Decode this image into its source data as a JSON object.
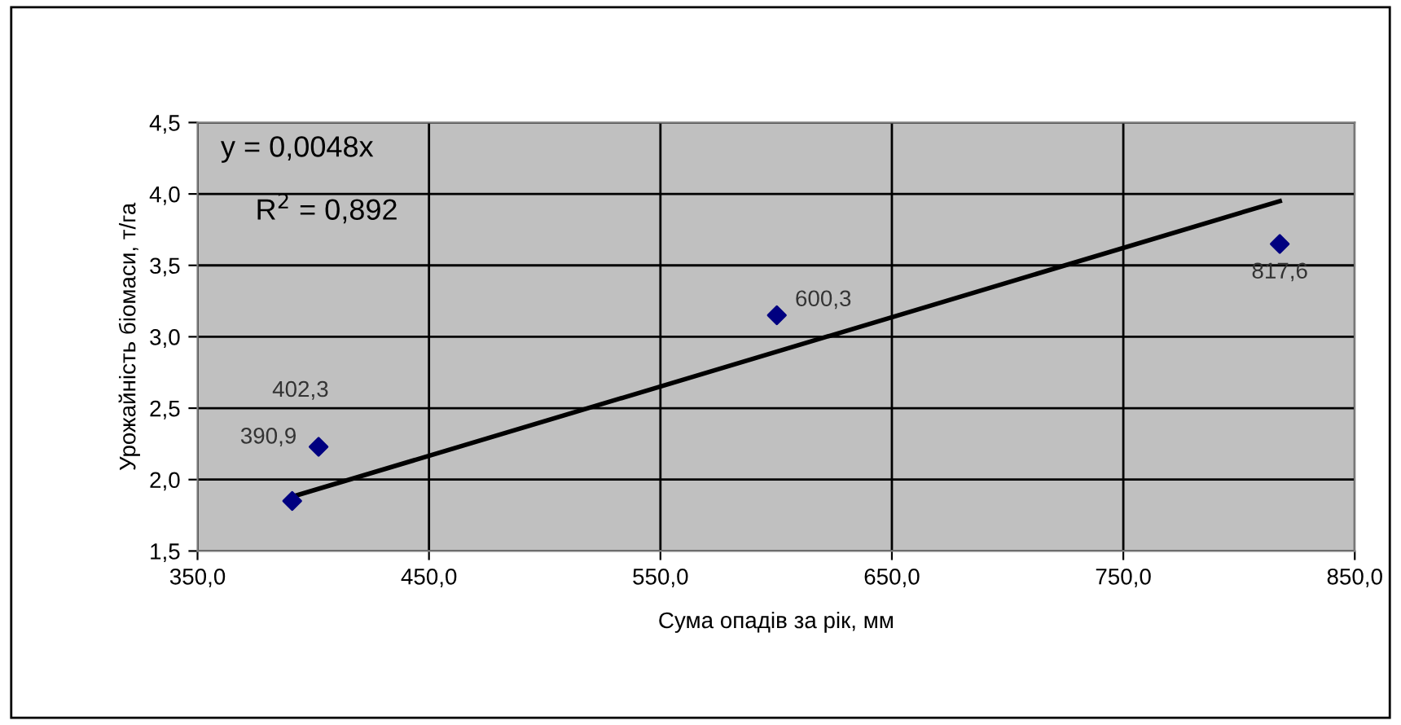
{
  "chart_data": {
    "type": "scatter",
    "xlabel": "Сума опадів за рік, мм",
    "ylabel": "Урожайність біомаси, т/га",
    "series": [
      {
        "color": "#000080",
        "x": [
          390.9,
          402.3,
          600.3,
          817.6
        ],
        "values": [
          1.85,
          2.23,
          3.15,
          3.65
        ],
        "marker": "diamond"
      },
      {
        "type": "line",
        "color": "#000000",
        "x": [
          390.9,
          817.6
        ],
        "values": [
          1.88,
          3.95
        ],
        "line_style": "solid"
      }
    ],
    "annotations": [
      "y = 0,0048x",
      "R$^{2}$ = 0,892",
      {
        "text": "390,9",
        "x": 390.9,
        "y": 1.85
      },
      {
        "text": "402,3",
        "x": 402.3,
        "y": 2.23
      },
      {
        "text": "600,3",
        "x": 600.3,
        "y": 3.15
      },
      {
        "text": "817,6",
        "x": 817.6,
        "y": 3.65
      }
    ],
    "xlim": [
      350,
      850
    ],
    "ylim": [
      1.5,
      4.5
    ],
    "xticks": [
      {
        "value": 350,
        "label": "350,0"
      },
      {
        "value": 450,
        "label": "450,0"
      },
      {
        "value": 550,
        "label": "550,0"
      },
      {
        "value": 650,
        "label": "650,0"
      },
      {
        "value": 750,
        "label": "750,0"
      },
      {
        "value": 850,
        "label": "850,0"
      }
    ],
    "yticks": [
      {
        "value": 1.5,
        "label": "1,5"
      },
      {
        "value": 2.0,
        "label": "2,0"
      },
      {
        "value": 2.5,
        "label": "2,5"
      },
      {
        "value": 3.0,
        "label": "3,0"
      },
      {
        "value": 3.5,
        "label": "3,5"
      },
      {
        "value": 4.0,
        "label": "4,0"
      },
      {
        "value": 4.5,
        "label": "4,5"
      }
    ],
    "grid": true,
    "legend": false
  }
}
